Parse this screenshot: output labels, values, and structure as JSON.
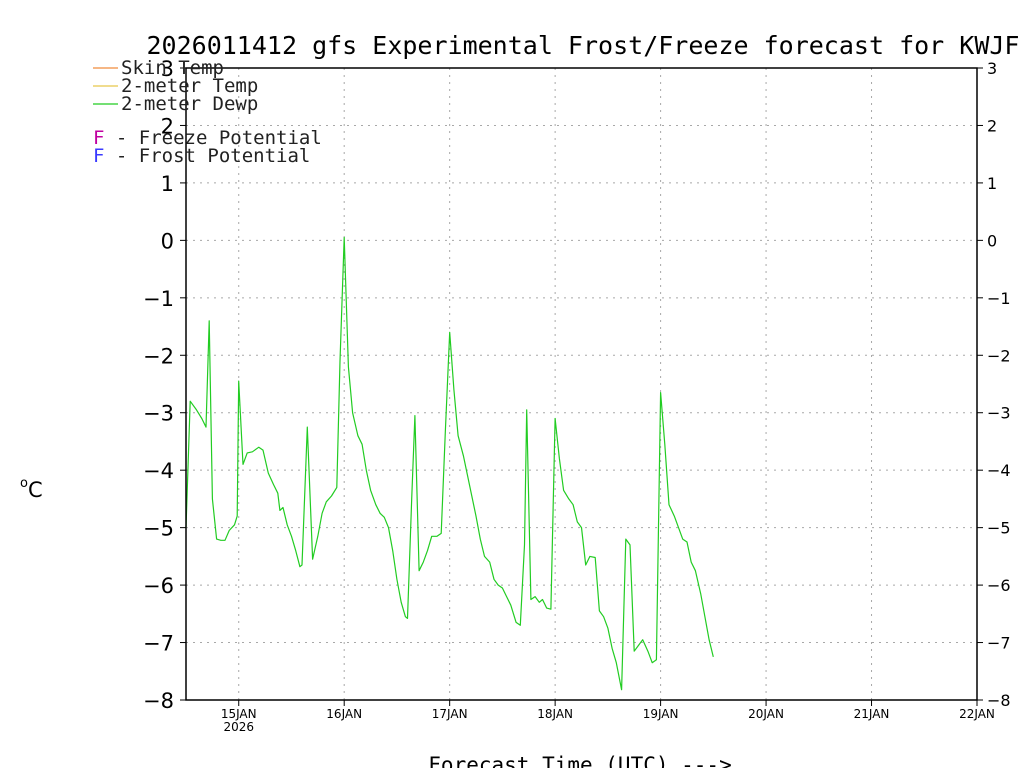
{
  "colors": {
    "skin_temp": "#f08c3c",
    "two_meter_temp": "#e6c84b",
    "two_meter_dewp": "#22cc22",
    "freeze_marker": "#c000a0",
    "frost_marker": "#3a3aff",
    "grid": "#a8a8a8",
    "axis": "#000000"
  },
  "chart_data": {
    "type": "line",
    "title": "2026011412 gfs Experimental Frost/Freeze forecast for KWJF",
    "xlabel": "Forecast Time (UTC) --->",
    "ylabel": "°C",
    "ylabel_sup": "o",
    "ylabel_unit": "C",
    "x_unit": "days since 2026-01-14 00 UTC",
    "xlim": [
      0.5,
      8.0
    ],
    "ylim": [
      -8,
      3
    ],
    "yticks": [
      -8,
      -7,
      -6,
      -5,
      -4,
      -3,
      -2,
      -1,
      0,
      1,
      2,
      3
    ],
    "yticklabels": [
      "−8",
      "−7",
      "−6",
      "−5",
      "−4",
      "−3",
      "−2",
      "−1",
      "0",
      "1",
      "2",
      "3"
    ],
    "xticks": [
      {
        "x": 1,
        "label": "15JAN",
        "sublabel": "2026"
      },
      {
        "x": 2,
        "label": "16JAN",
        "sublabel": ""
      },
      {
        "x": 3,
        "label": "17JAN",
        "sublabel": ""
      },
      {
        "x": 4,
        "label": "18JAN",
        "sublabel": ""
      },
      {
        "x": 5,
        "label": "19JAN",
        "sublabel": ""
      },
      {
        "x": 6,
        "label": "20JAN",
        "sublabel": ""
      },
      {
        "x": 7,
        "label": "21JAN",
        "sublabel": ""
      },
      {
        "x": 8,
        "label": "22JAN",
        "sublabel": ""
      }
    ],
    "grid": true,
    "legend_position": "top-left",
    "legend": [
      {
        "label": "Skin Temp",
        "color_key": "skin_temp"
      },
      {
        "label": "2-meter Temp",
        "color_key": "two_meter_temp"
      },
      {
        "label": "2-meter Dewp",
        "color_key": "two_meter_dewp"
      }
    ],
    "annotations": [
      {
        "marker": "F",
        "text": " - Freeze Potential",
        "color_key": "freeze_marker"
      },
      {
        "marker": "F",
        "text": " - Frost Potential",
        "color_key": "frost_marker"
      }
    ],
    "series": [
      {
        "name": "2-meter Dewp",
        "color_key": "two_meter_dewp",
        "points": [
          [
            0.5,
            -5.0
          ],
          [
            0.54,
            -2.8
          ],
          [
            0.6,
            -2.95
          ],
          [
            0.65,
            -3.1
          ],
          [
            0.69,
            -3.25
          ],
          [
            0.72,
            -1.4
          ],
          [
            0.75,
            -4.5
          ],
          [
            0.79,
            -5.2
          ],
          [
            0.83,
            -5.22
          ],
          [
            0.87,
            -5.22
          ],
          [
            0.91,
            -5.05
          ],
          [
            0.96,
            -4.95
          ],
          [
            0.985,
            -4.8
          ],
          [
            1.0,
            -2.45
          ],
          [
            1.04,
            -3.9
          ],
          [
            1.08,
            -3.7
          ],
          [
            1.13,
            -3.68
          ],
          [
            1.19,
            -3.6
          ],
          [
            1.23,
            -3.65
          ],
          [
            1.28,
            -4.05
          ],
          [
            1.33,
            -4.25
          ],
          [
            1.37,
            -4.4
          ],
          [
            1.39,
            -4.7
          ],
          [
            1.42,
            -4.65
          ],
          [
            1.46,
            -4.95
          ],
          [
            1.5,
            -5.15
          ],
          [
            1.54,
            -5.4
          ],
          [
            1.58,
            -5.68
          ],
          [
            1.6,
            -5.65
          ],
          [
            1.65,
            -3.25
          ],
          [
            1.7,
            -5.55
          ],
          [
            1.75,
            -5.15
          ],
          [
            1.79,
            -4.75
          ],
          [
            1.83,
            -4.55
          ],
          [
            1.88,
            -4.45
          ],
          [
            1.93,
            -4.3
          ],
          [
            1.96,
            -2.1
          ],
          [
            2.0,
            0.05
          ],
          [
            2.04,
            -2.2
          ],
          [
            2.08,
            -3.0
          ],
          [
            2.13,
            -3.4
          ],
          [
            2.17,
            -3.55
          ],
          [
            2.21,
            -4.0
          ],
          [
            2.25,
            -4.35
          ],
          [
            2.3,
            -4.6
          ],
          [
            2.34,
            -4.75
          ],
          [
            2.38,
            -4.82
          ],
          [
            2.42,
            -5.0
          ],
          [
            2.46,
            -5.4
          ],
          [
            2.5,
            -5.9
          ],
          [
            2.54,
            -6.3
          ],
          [
            2.58,
            -6.55
          ],
          [
            2.6,
            -6.58
          ],
          [
            2.64,
            -4.5
          ],
          [
            2.67,
            -3.05
          ],
          [
            2.71,
            -5.75
          ],
          [
            2.75,
            -5.6
          ],
          [
            2.79,
            -5.4
          ],
          [
            2.83,
            -5.15
          ],
          [
            2.88,
            -5.15
          ],
          [
            2.92,
            -5.1
          ],
          [
            2.96,
            -3.3
          ],
          [
            3.0,
            -1.6
          ],
          [
            3.04,
            -2.6
          ],
          [
            3.08,
            -3.4
          ],
          [
            3.13,
            -3.75
          ],
          [
            3.17,
            -4.1
          ],
          [
            3.21,
            -4.45
          ],
          [
            3.25,
            -4.8
          ],
          [
            3.29,
            -5.2
          ],
          [
            3.33,
            -5.5
          ],
          [
            3.38,
            -5.6
          ],
          [
            3.42,
            -5.9
          ],
          [
            3.46,
            -6.0
          ],
          [
            3.5,
            -6.05
          ],
          [
            3.54,
            -6.2
          ],
          [
            3.58,
            -6.35
          ],
          [
            3.63,
            -6.65
          ],
          [
            3.67,
            -6.7
          ],
          [
            3.71,
            -5.3
          ],
          [
            3.73,
            -2.95
          ],
          [
            3.77,
            -6.25
          ],
          [
            3.81,
            -6.2
          ],
          [
            3.85,
            -6.3
          ],
          [
            3.88,
            -6.25
          ],
          [
            3.92,
            -6.4
          ],
          [
            3.96,
            -6.42
          ],
          [
            4.0,
            -3.1
          ],
          [
            4.04,
            -3.8
          ],
          [
            4.08,
            -4.35
          ],
          [
            4.13,
            -4.5
          ],
          [
            4.17,
            -4.6
          ],
          [
            4.21,
            -4.9
          ],
          [
            4.25,
            -5.0
          ],
          [
            4.29,
            -5.65
          ],
          [
            4.33,
            -5.5
          ],
          [
            4.38,
            -5.52
          ],
          [
            4.42,
            -6.45
          ],
          [
            4.46,
            -6.55
          ],
          [
            4.5,
            -6.75
          ],
          [
            4.54,
            -7.1
          ],
          [
            4.58,
            -7.35
          ],
          [
            4.63,
            -7.82
          ],
          [
            4.67,
            -5.2
          ],
          [
            4.71,
            -5.3
          ],
          [
            4.75,
            -7.15
          ],
          [
            4.79,
            -7.05
          ],
          [
            4.83,
            -6.95
          ],
          [
            4.88,
            -7.15
          ],
          [
            4.92,
            -7.35
          ],
          [
            4.96,
            -7.3
          ],
          [
            5.0,
            -2.65
          ],
          [
            5.04,
            -3.55
          ],
          [
            5.08,
            -4.6
          ],
          [
            5.13,
            -4.8
          ],
          [
            5.17,
            -5.0
          ],
          [
            5.21,
            -5.2
          ],
          [
            5.25,
            -5.25
          ],
          [
            5.29,
            -5.6
          ],
          [
            5.33,
            -5.75
          ],
          [
            5.38,
            -6.15
          ],
          [
            5.42,
            -6.55
          ],
          [
            5.46,
            -6.95
          ],
          [
            5.5,
            -7.25
          ]
        ]
      }
    ]
  }
}
